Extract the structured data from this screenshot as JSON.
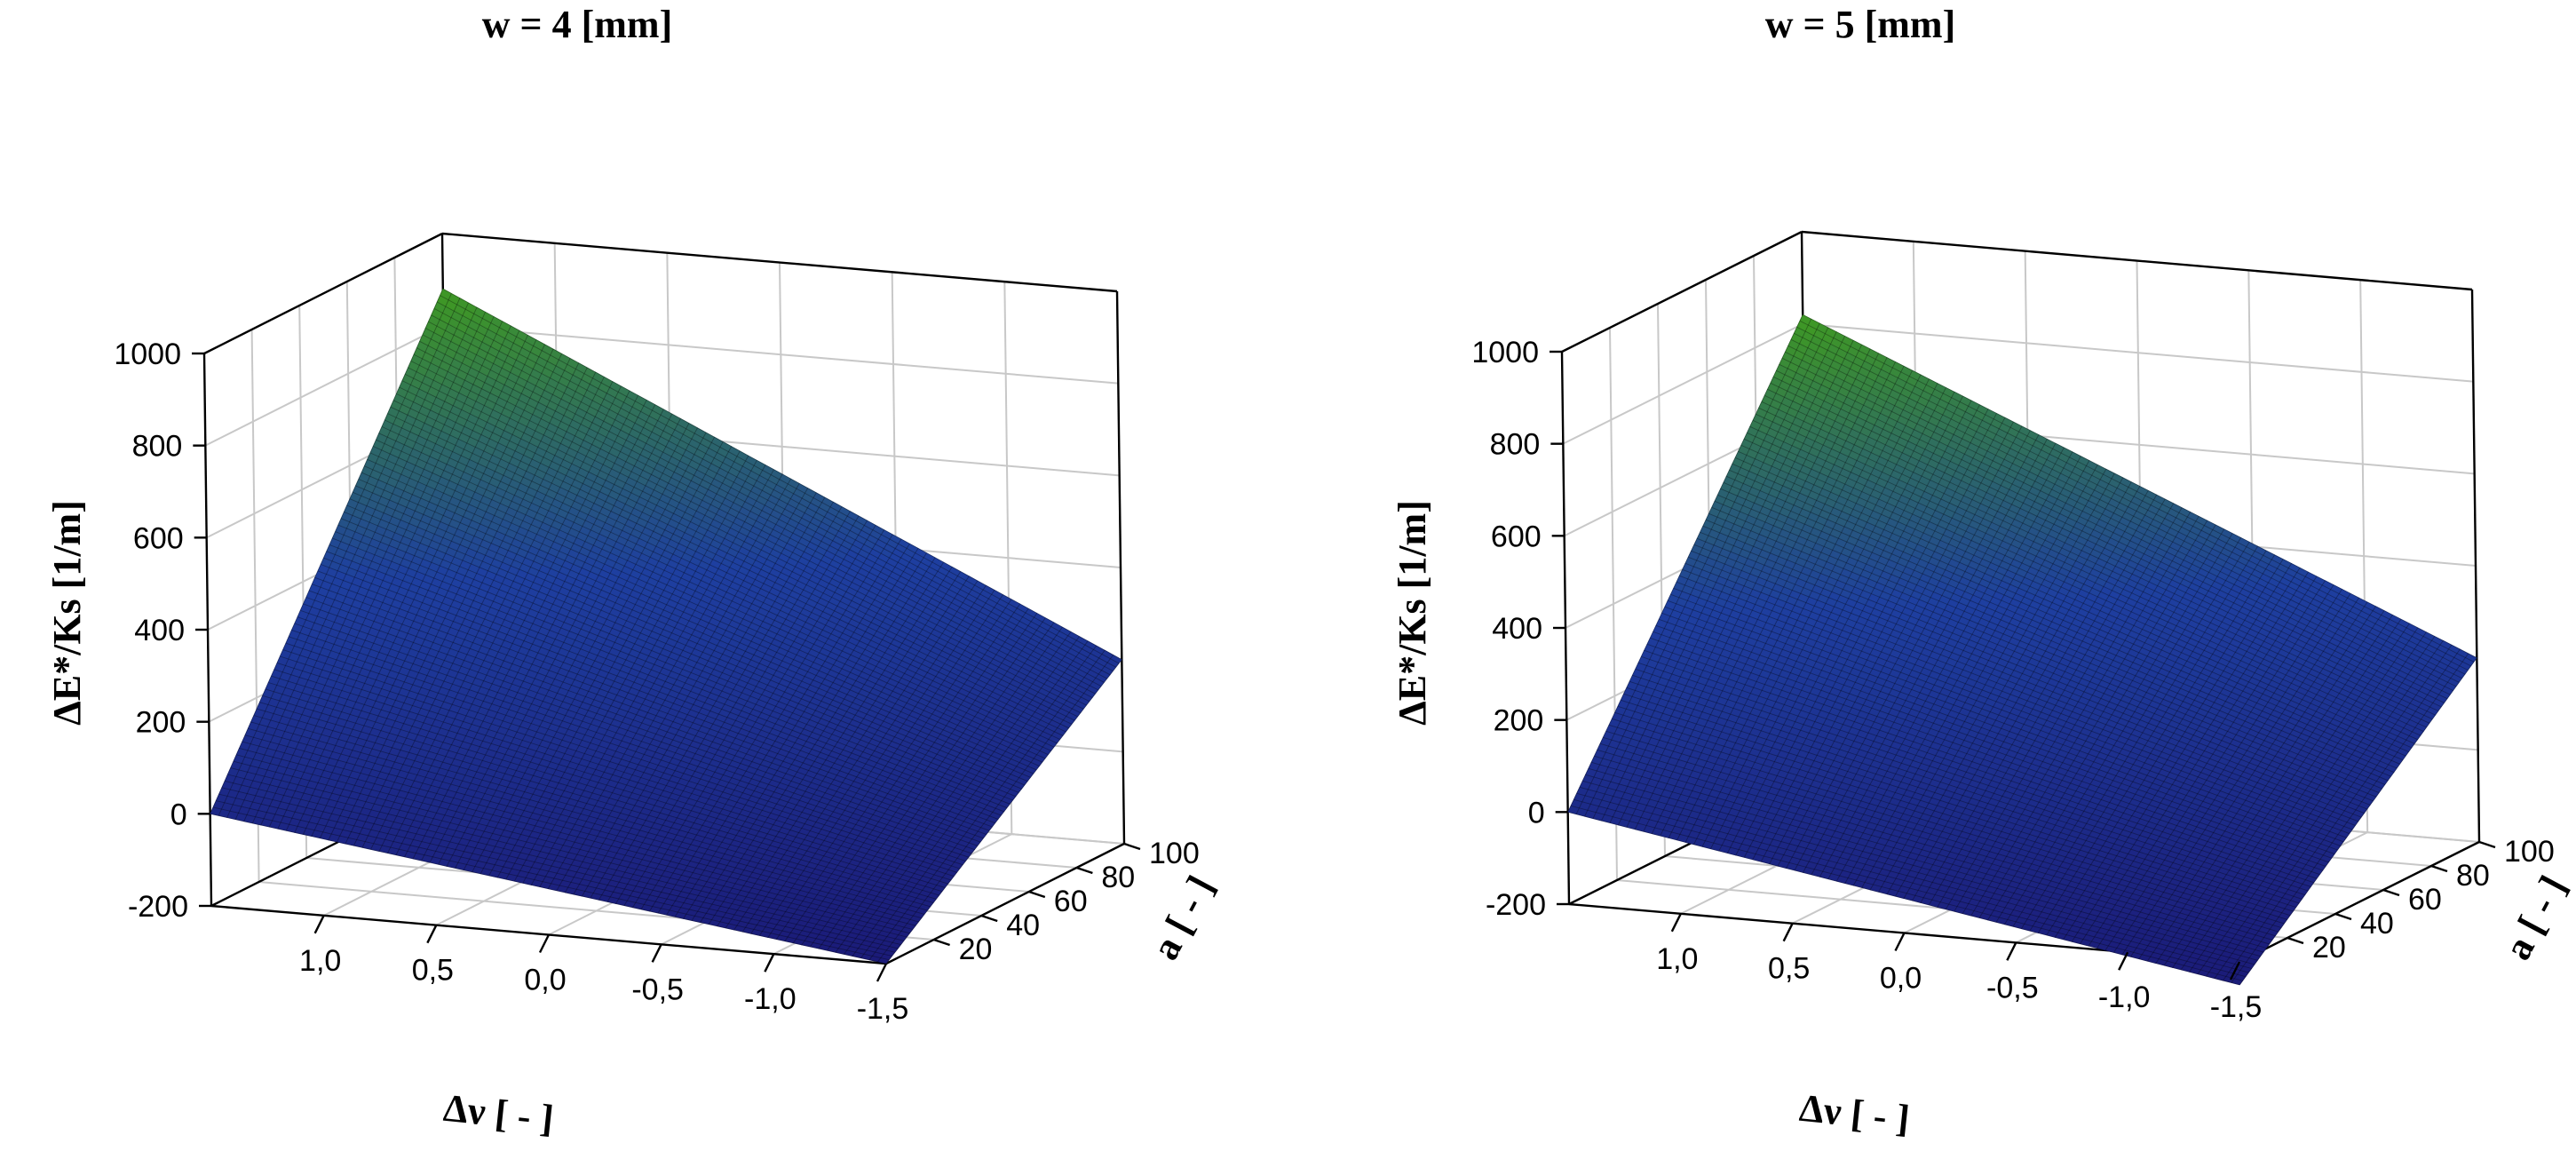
{
  "chart_data": [
    {
      "type": "surface",
      "title": "w = 4 [mm]",
      "xlabel": "Δν [ - ]",
      "ylabel": "a [ - ]",
      "zlabel": "ΔE*/Ks [1/m]",
      "x_ticks": [
        "1,0",
        "0,5",
        "0,0",
        "-0,5",
        "-1,0",
        "-1,5"
      ],
      "y_ticks": [
        "20",
        "40",
        "60",
        "80",
        "100"
      ],
      "z_ticks": [
        "-200",
        "0",
        "200",
        "400",
        "600",
        "800",
        "1000"
      ],
      "xlim": [
        1.5,
        -1.5
      ],
      "ylim": [
        0,
        100
      ],
      "zlim": [
        -200,
        1000
      ],
      "grid": true,
      "corners": [
        {
          "dv": 1.5,
          "a": 0,
          "z": 0
        },
        {
          "dv": -1.5,
          "a": 0,
          "z": -200
        },
        {
          "dv": -1.5,
          "a": 100,
          "z": 200
        },
        {
          "dv": 1.5,
          "a": 100,
          "z": 880
        }
      ],
      "colors": {
        "low": "#1b1b78",
        "mid": "#1e3fa0",
        "high": "#3f9a22"
      }
    },
    {
      "type": "surface",
      "title": "w = 5 [mm]",
      "xlabel": "Δν [ - ]",
      "ylabel": "a [ - ]",
      "zlabel": "ΔE*/Ks [1/m]",
      "x_ticks": [
        "1,0",
        "0,5",
        "0,0",
        "-0,5",
        "-1,0",
        "-1,5"
      ],
      "y_ticks": [
        "20",
        "40",
        "60",
        "80",
        "100"
      ],
      "z_ticks": [
        "-200",
        "0",
        "200",
        "400",
        "600",
        "800",
        "1000"
      ],
      "xlim": [
        1.5,
        -1.5
      ],
      "ylim": [
        0,
        100
      ],
      "zlim": [
        -200,
        1000
      ],
      "grid": true,
      "corners": [
        {
          "dv": 1.5,
          "a": 0,
          "z": 0
        },
        {
          "dv": -1.5,
          "a": 0,
          "z": -250
        },
        {
          "dv": -1.5,
          "a": 100,
          "z": 200
        },
        {
          "dv": 1.5,
          "a": 100,
          "z": 820
        }
      ],
      "colors": {
        "low": "#1b1b78",
        "mid": "#1e3fa0",
        "high": "#3f9a22"
      }
    }
  ]
}
